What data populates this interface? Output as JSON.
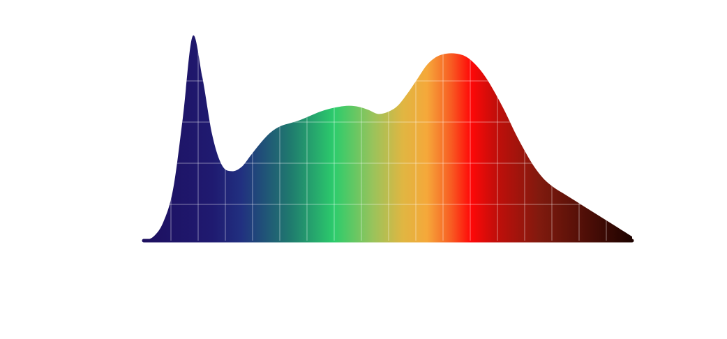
{
  "chart_data": {
    "type": "area",
    "title": "",
    "xlabel": "",
    "ylabel": "",
    "grid": true,
    "x": [
      0,
      2,
      4,
      6,
      8,
      10,
      12,
      14,
      16,
      18,
      20,
      22,
      24,
      26,
      28,
      30,
      32,
      34,
      36,
      38,
      40,
      42,
      44,
      46,
      48,
      50,
      52,
      54,
      56,
      58,
      60,
      62,
      64,
      66,
      68,
      70,
      72,
      74,
      76,
      78,
      80,
      82,
      84,
      86,
      88,
      90,
      92,
      94,
      96,
      98,
      100
    ],
    "series": [
      {
        "values": [
          0,
          2,
          9,
          25,
          60,
          100,
          80,
          52,
          37,
          34,
          36,
          42,
          48,
          53,
          56,
          57.5,
          59,
          61,
          63,
          64.5,
          65.5,
          66,
          65.5,
          64,
          62,
          63,
          66,
          72,
          79,
          86,
          90,
          91.5,
          91.5,
          90,
          86,
          80,
          72,
          63,
          53,
          44,
          36,
          30,
          26,
          23,
          20,
          17,
          14,
          11,
          8,
          5,
          2
        ]
      }
    ],
    "xlim": [
      0,
      100
    ],
    "ylim": [
      0,
      100
    ],
    "gradient_stops": [
      {
        "offset": 0,
        "color": "#1e1060"
      },
      {
        "offset": 0.14,
        "color": "#1f1a70"
      },
      {
        "offset": 0.2,
        "color": "#213080"
      },
      {
        "offset": 0.3,
        "color": "#1f7a6e"
      },
      {
        "offset": 0.39,
        "color": "#2ccc6c"
      },
      {
        "offset": 0.47,
        "color": "#9ac35b"
      },
      {
        "offset": 0.53,
        "color": "#e0b642"
      },
      {
        "offset": 0.58,
        "color": "#f5a83a"
      },
      {
        "offset": 0.63,
        "color": "#f85b22"
      },
      {
        "offset": 0.67,
        "color": "#ff0808"
      },
      {
        "offset": 0.72,
        "color": "#c30e0a"
      },
      {
        "offset": 0.81,
        "color": "#801a0e"
      },
      {
        "offset": 1,
        "color": "#1e0300"
      }
    ],
    "grid_color": "#ffffff"
  }
}
